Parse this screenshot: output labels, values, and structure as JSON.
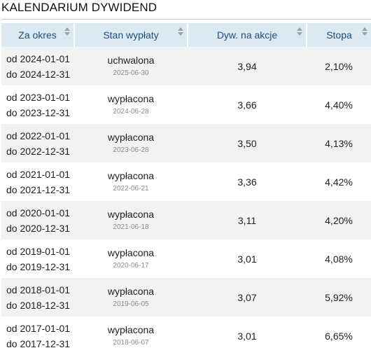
{
  "title": "KALENDARIUM DYWIDEND",
  "headers": [
    "Za okres",
    "Stan wypłaty",
    "Dyw. na akcje",
    "Stopa"
  ],
  "rows": [
    {
      "from": "od 2024-01-01",
      "to": "do 2024-12-31",
      "status": "uchwalona",
      "date": "2025-06-30",
      "dividend": "3,94",
      "rate": "2,10%"
    },
    {
      "from": "od 2023-01-01",
      "to": "do 2023-12-31",
      "status": "wypłacona",
      "date": "2024-06-28",
      "dividend": "3,66",
      "rate": "4,40%"
    },
    {
      "from": "od 2022-01-01",
      "to": "do 2022-12-31",
      "status": "wypłacona",
      "date": "2023-06-28",
      "dividend": "3,50",
      "rate": "4,13%"
    },
    {
      "from": "od 2021-01-01",
      "to": "do 2021-12-31",
      "status": "wypłacona",
      "date": "2022-06-21",
      "dividend": "3,36",
      "rate": "4,42%"
    },
    {
      "from": "od 2020-01-01",
      "to": "do 2020-12-31",
      "status": "wypłacona",
      "date": "2021-06-18",
      "dividend": "3,11",
      "rate": "4,20%"
    },
    {
      "from": "od 2019-01-01",
      "to": "do 2019-12-31",
      "status": "wypłacona",
      "date": "2020-06-17",
      "dividend": "3,01",
      "rate": "4,08%"
    },
    {
      "from": "od 2018-01-01",
      "to": "do 2018-12-31",
      "status": "wypłacona",
      "date": "2019-06-05",
      "dividend": "3,07",
      "rate": "5,92%"
    },
    {
      "from": "od 2017-01-01",
      "to": "do 2017-12-31",
      "status": "wypłacona",
      "date": "2018-06-07",
      "dividend": "3,01",
      "rate": "6,65%"
    }
  ]
}
